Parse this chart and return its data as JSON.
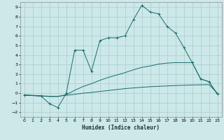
{
  "xlabel": "Humidex (Indice chaleur)",
  "bg_color": "#cce8e8",
  "grid_color": "#aacccc",
  "line_color": "#1a6b6b",
  "ylim": [
    -2.5,
    9.5
  ],
  "xlim": [
    -0.5,
    23.5
  ],
  "yticks": [
    -2,
    -1,
    0,
    1,
    2,
    3,
    4,
    5,
    6,
    7,
    8,
    9
  ],
  "xticks": [
    0,
    1,
    2,
    3,
    4,
    5,
    6,
    7,
    8,
    9,
    10,
    11,
    12,
    13,
    14,
    15,
    16,
    17,
    18,
    19,
    20,
    21,
    22,
    23
  ],
  "line1_x": [
    0,
    2,
    3,
    4,
    5,
    6,
    7,
    8,
    9,
    10,
    11,
    12,
    13,
    14,
    15,
    16,
    17,
    18,
    19,
    20,
    21,
    22,
    23
  ],
  "line1_y": [
    -0.2,
    -0.3,
    -1.1,
    -1.5,
    0.0,
    4.5,
    4.5,
    2.3,
    5.5,
    5.8,
    5.8,
    6.0,
    7.7,
    9.2,
    8.5,
    8.3,
    7.0,
    6.3,
    4.8,
    3.2,
    1.5,
    1.2,
    -0.1
  ],
  "line2_x": [
    0,
    1,
    2,
    3,
    4,
    5,
    6,
    7,
    8,
    9,
    10,
    11,
    12,
    13,
    14,
    15,
    16,
    17,
    18,
    19,
    20,
    21,
    22,
    23
  ],
  "line2_y": [
    -0.2,
    -0.22,
    -0.28,
    -0.32,
    -0.32,
    -0.22,
    -0.12,
    0.0,
    0.08,
    0.18,
    0.28,
    0.38,
    0.48,
    0.55,
    0.62,
    0.68,
    0.72,
    0.76,
    0.8,
    0.83,
    0.86,
    0.88,
    0.9,
    0.0
  ],
  "line3_x": [
    0,
    2,
    3,
    4,
    5,
    6,
    7,
    8,
    9,
    10,
    11,
    12,
    13,
    14,
    15,
    16,
    17,
    18,
    19,
    20,
    21,
    22,
    23
  ],
  "line3_y": [
    -0.2,
    -0.3,
    -0.35,
    -0.35,
    -0.15,
    0.3,
    0.7,
    1.0,
    1.35,
    1.65,
    1.9,
    2.15,
    2.45,
    2.7,
    2.85,
    3.05,
    3.15,
    3.2,
    3.2,
    3.2,
    1.5,
    1.2,
    -0.1
  ]
}
